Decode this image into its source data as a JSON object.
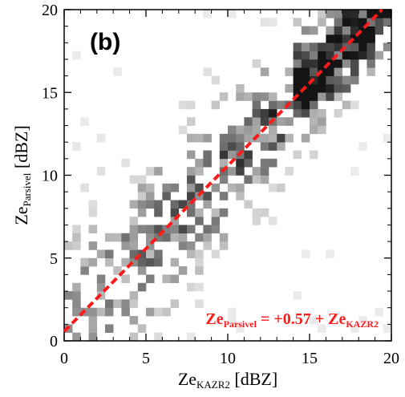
{
  "chart_data": {
    "type": "heatmap",
    "panel_label": "(b)",
    "x_axis": {
      "label_main": "Ze",
      "label_sub": "KAZR2",
      "label_unit": "[dBZ]",
      "range": [
        0,
        20
      ],
      "ticks": [
        0,
        5,
        10,
        15,
        20
      ],
      "tick_labels": [
        "0",
        "5",
        "10",
        "15",
        "20"
      ]
    },
    "y_axis": {
      "label_main": "Ze",
      "label_sub": "Parsivel",
      "label_unit": "[dBZ]",
      "range": [
        0,
        20
      ],
      "ticks": [
        0,
        5,
        10,
        15,
        20
      ],
      "tick_labels": [
        "0",
        "5",
        "10",
        "15",
        "20"
      ]
    },
    "grid": false,
    "colormap": "greyscale-density",
    "bins": 40,
    "fit_line": {
      "intercept": 0.57,
      "slope": 1,
      "color": "#ff1a1a",
      "style": "dashed",
      "equation": {
        "lhs_main": "Ze",
        "lhs_sub": "Parsivel",
        "middle": " = +0.57 + Ze",
        "rhs_sub": "KAZR2"
      }
    }
  }
}
